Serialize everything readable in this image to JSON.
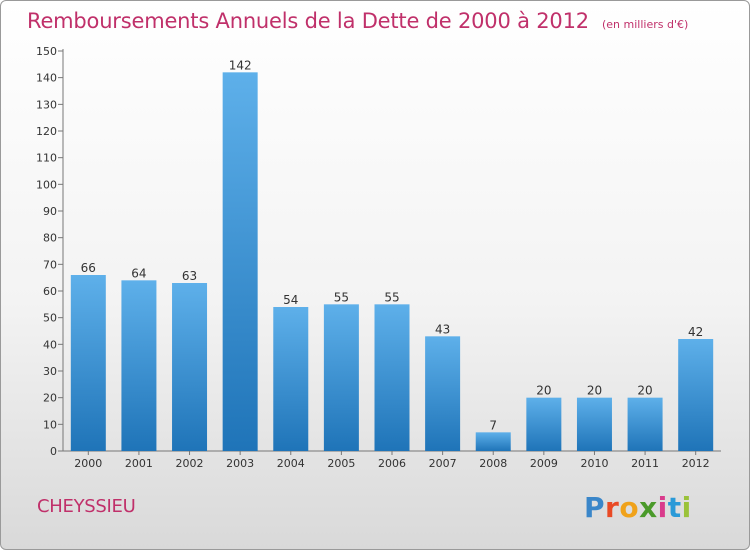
{
  "title": "Remboursements Annuels de la Dette de 2000 à 2012",
  "unit_note": "(en milliers d'€)",
  "commune": "CHEYSSIEU",
  "logo": {
    "text": "Proxiti",
    "colors": [
      "#3a86c9",
      "#e94a25",
      "#f0a21a",
      "#4a9a2a",
      "#d93b8c",
      "#2a9ad8",
      "#9ac23a"
    ]
  },
  "colors": {
    "title": "#c0306a",
    "bar_top": "#5eb0ea",
    "bar_bottom": "#1f74b8"
  },
  "chart_data": {
    "type": "bar",
    "categories": [
      "2000",
      "2001",
      "2002",
      "2003",
      "2004",
      "2005",
      "2006",
      "2007",
      "2008",
      "2009",
      "2010",
      "2011",
      "2012"
    ],
    "values": [
      66,
      64,
      63,
      142,
      54,
      55,
      55,
      43,
      7,
      20,
      20,
      20,
      42
    ],
    "value_labels": [
      "66",
      "64",
      "63",
      "142",
      "54",
      "55",
      "55",
      "43",
      "7",
      "20",
      "20",
      "20",
      "42"
    ],
    "ylim": [
      0,
      150
    ],
    "yticks": [
      0,
      10,
      20,
      30,
      40,
      50,
      60,
      70,
      80,
      90,
      100,
      110,
      120,
      130,
      140,
      150
    ],
    "xlabel": "",
    "ylabel": "",
    "grid": false
  }
}
